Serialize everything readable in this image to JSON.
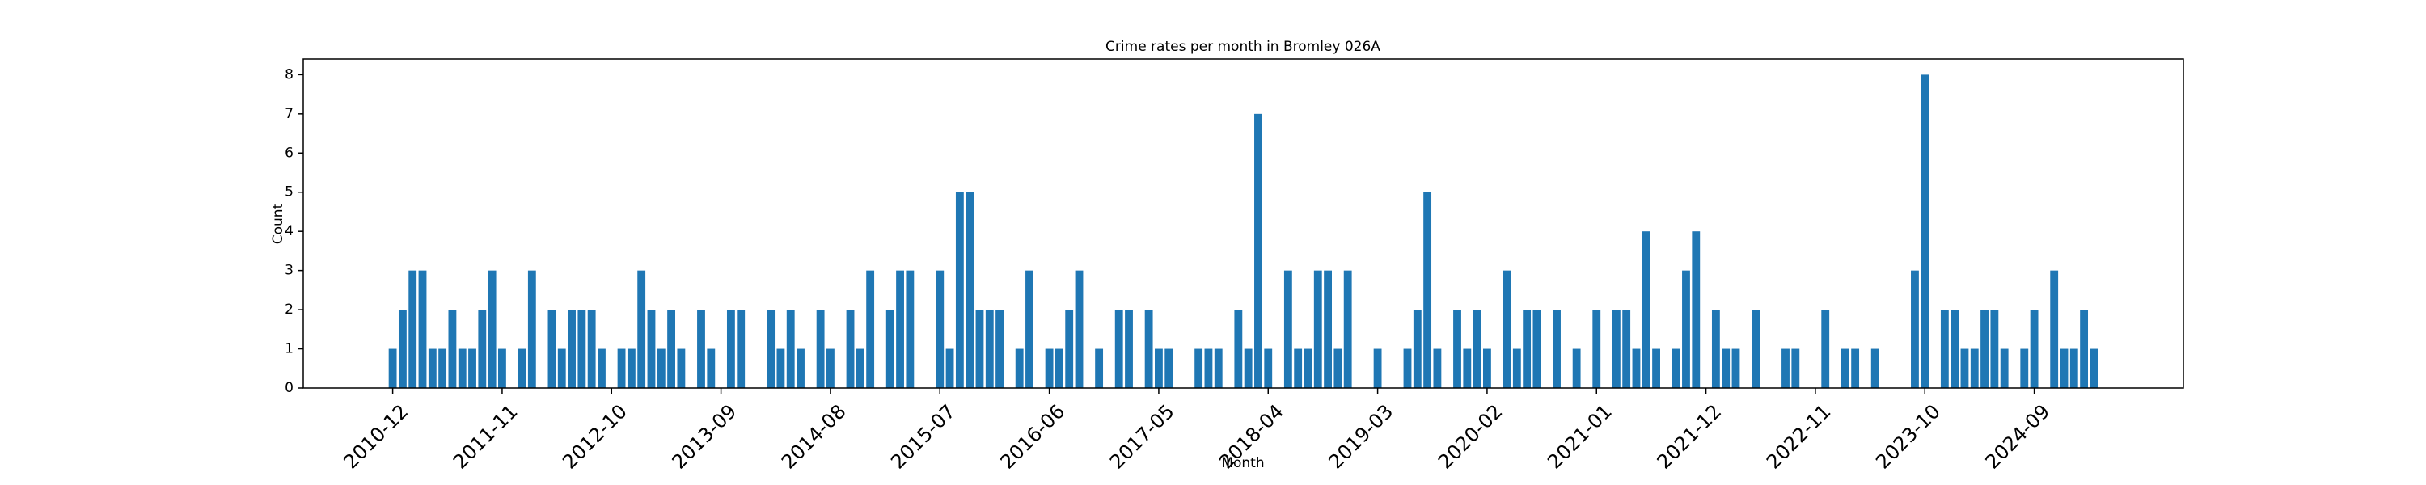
{
  "chart_data": {
    "type": "bar",
    "title": "Crime rates per month in Bromley 026A",
    "x_label": "Month",
    "y_label": "Count",
    "categories": [
      "2010-12",
      null,
      null,
      null,
      null,
      null,
      null,
      null,
      null,
      null,
      null,
      "2011-11",
      null,
      null,
      null,
      null,
      null,
      null,
      null,
      null,
      null,
      null,
      "2012-10",
      null,
      null,
      null,
      null,
      null,
      null,
      null,
      null,
      null,
      null,
      "2013-09",
      null,
      null,
      null,
      null,
      null,
      null,
      null,
      null,
      null,
      null,
      "2014-08",
      null,
      null,
      null,
      null,
      null,
      null,
      null,
      null,
      null,
      null,
      "2015-07",
      null,
      null,
      null,
      null,
      null,
      null,
      null,
      null,
      null,
      null,
      "2016-06",
      null,
      null,
      null,
      null,
      null,
      null,
      null,
      null,
      null,
      null,
      "2017-05",
      null,
      null,
      null,
      null,
      null,
      null,
      null,
      null,
      null,
      null,
      "2018-04",
      null,
      null,
      null,
      null,
      null,
      null,
      null,
      null,
      null,
      null,
      "2019-03",
      null,
      null,
      null,
      null,
      null,
      null,
      null,
      null,
      null,
      null,
      "2020-02",
      null,
      null,
      null,
      null,
      null,
      null,
      null,
      null,
      null,
      null,
      "2021-01",
      null,
      null,
      null,
      null,
      null,
      null,
      null,
      null,
      null,
      null,
      "2021-12",
      null,
      null,
      null,
      null,
      null,
      null,
      null,
      null,
      null,
      null,
      "2022-11",
      null,
      null,
      null,
      null,
      null,
      null,
      null,
      null,
      null,
      null,
      "2023-10",
      null,
      null,
      null,
      null,
      null,
      null,
      null,
      null,
      null,
      null,
      "2024-09",
      null,
      null,
      null,
      null,
      null,
      null
    ],
    "values": [
      1,
      2,
      3,
      3,
      1,
      1,
      2,
      1,
      1,
      2,
      3,
      1,
      0,
      1,
      3,
      0,
      2,
      1,
      2,
      2,
      2,
      1,
      0,
      1,
      1,
      3,
      2,
      1,
      2,
      1,
      0,
      2,
      1,
      0,
      2,
      2,
      0,
      0,
      2,
      1,
      2,
      1,
      0,
      2,
      1,
      0,
      2,
      1,
      3,
      0,
      2,
      3,
      3,
      0,
      0,
      3,
      1,
      5,
      5,
      2,
      2,
      2,
      0,
      1,
      3,
      0,
      1,
      1,
      2,
      3,
      0,
      1,
      0,
      2,
      2,
      0,
      2,
      1,
      1,
      0,
      0,
      1,
      1,
      1,
      0,
      2,
      1,
      7,
      1,
      0,
      3,
      1,
      1,
      3,
      3,
      1,
      3,
      0,
      0,
      1,
      0,
      0,
      1,
      2,
      5,
      1,
      0,
      2,
      1,
      2,
      1,
      0,
      3,
      1,
      2,
      2,
      0,
      2,
      0,
      1,
      0,
      2,
      0,
      2,
      2,
      1,
      4,
      1,
      0,
      1,
      3,
      4,
      0,
      2,
      1,
      1,
      0,
      2,
      0,
      0,
      1,
      1,
      0,
      0,
      2,
      0,
      1,
      1,
      0,
      1,
      0,
      0,
      0,
      3,
      8,
      0,
      2,
      2,
      1,
      1,
      2,
      2,
      1,
      0,
      1,
      2,
      0,
      3,
      1,
      1,
      2,
      1
    ],
    "color": "#1f77b4",
    "ylim": [
      0,
      8.4
    ],
    "yticks": [
      0,
      1,
      2,
      3,
      4,
      5,
      6,
      7,
      8
    ],
    "grid": false
  }
}
